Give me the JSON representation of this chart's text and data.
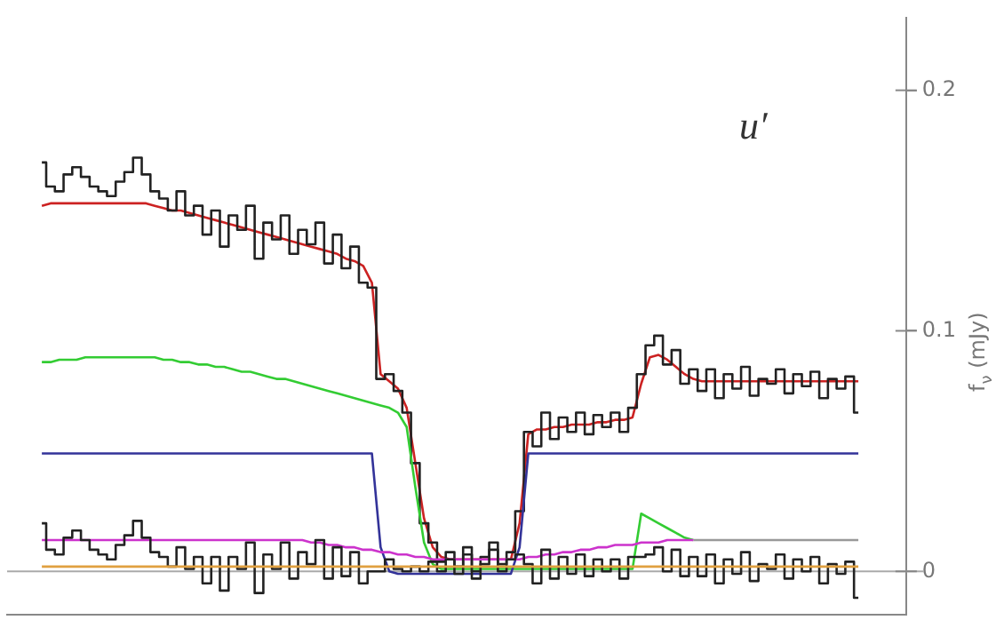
{
  "chart_data": {
    "type": "line",
    "ylabel": "f$_{ν}$ (mJy)",
    "annotations": [
      "u′"
    ],
    "categories": [
      null,
      null,
      null,
      null,
      null,
      null,
      null,
      null,
      null,
      null,
      null,
      null,
      null,
      null,
      null,
      null,
      null,
      null,
      null,
      null,
      null,
      null,
      null,
      null,
      null,
      null,
      null,
      null,
      null,
      null,
      null,
      null,
      null,
      null,
      null,
      null,
      null,
      null,
      null,
      null,
      null,
      null,
      null,
      null,
      null,
      null,
      null,
      null,
      null,
      null,
      null,
      null,
      null,
      null,
      null,
      null,
      null,
      null,
      null,
      null,
      null,
      null,
      null,
      null,
      null,
      null,
      null,
      null,
      null,
      null,
      null,
      null,
      null,
      null,
      null,
      null,
      null,
      null,
      null,
      null,
      null,
      null,
      null,
      null,
      null,
      null,
      null,
      null,
      null,
      null,
      null,
      null,
      null,
      null,
      null
    ],
    "ylim": [
      -0.018,
      0.23
    ],
    "yticks": [
      0,
      0.1,
      0.2
    ],
    "tick_labels": "y",
    "legend": false,
    "marker": "none",
    "ref_lines": [
      {
        "axis": "y",
        "value": 0,
        "color": "#aaaaaa"
      }
    ],
    "series": [
      {
        "type": "line",
        "color": "#e0a040",
        "values": [
          0.002,
          0.002,
          0.002,
          0.002,
          0.002,
          0.002,
          0.002,
          0.002,
          0.002,
          0.002,
          0.002,
          0.002,
          0.002,
          0.002,
          0.002,
          0.002,
          0.002,
          0.002,
          0.002,
          0.002,
          0.002,
          0.002,
          0.002,
          0.002,
          0.002,
          0.002,
          0.002,
          0.002,
          0.002,
          0.002,
          0.002,
          0.002,
          0.002,
          0.002,
          0.002,
          0.002,
          0.002,
          0.002,
          0.002,
          0.002,
          0.002,
          0.002,
          0.002,
          0.002,
          0.002,
          0.002,
          0.002,
          0.002,
          0.002,
          0.002,
          0.002,
          0.002,
          0.002,
          0.002,
          0.002,
          0.002,
          0.002,
          0.002,
          0.002,
          0.002,
          0.002,
          0.002,
          0.002,
          0.002,
          0.002,
          0.002,
          0.002,
          0.002,
          0.002,
          0.002,
          0.002,
          0.002,
          0.002,
          0.002,
          0.002,
          0.002,
          0.002,
          0.002,
          0.002,
          0.002,
          0.002,
          0.002,
          0.002,
          0.002,
          0.002,
          0.002,
          0.002,
          0.002,
          0.002,
          0.002,
          0.002,
          0.002,
          0.002,
          0.002,
          0.002
        ]
      },
      {
        "type": "step",
        "color": "#222222",
        "values": [
          0.02,
          0.009,
          0.007,
          0.014,
          0.017,
          0.013,
          0.009,
          0.007,
          0.005,
          0.011,
          0.015,
          0.021,
          0.014,
          0.008,
          0.006,
          0.002,
          0.01,
          0.001,
          0.006,
          -0.005,
          0.006,
          -0.008,
          0.006,
          0.001,
          0.012,
          -0.009,
          0.007,
          0.001,
          0.012,
          -0.003,
          0.008,
          0.003,
          0.013,
          -0.003,
          0.01,
          -0.002,
          0.008,
          -0.005,
          0.0,
          0.0,
          0.005,
          0.001,
          0.0,
          0.002,
          0.0,
          0.004,
          0.0,
          0.005,
          -0.001,
          0.007,
          -0.003,
          0.003,
          0.009,
          0.0,
          0.005,
          0.007,
          0.003,
          -0.005,
          0.009,
          -0.003,
          0.006,
          -0.001,
          0.007,
          -0.002,
          0.005,
          0.0,
          0.005,
          -0.003,
          0.006,
          0.006,
          0.007,
          0.01,
          0.0,
          0.009,
          -0.002,
          0.006,
          -0.002,
          0.007,
          -0.005,
          0.005,
          -0.001,
          0.008,
          -0.004,
          0.003,
          0.001,
          0.007,
          -0.003,
          0.005,
          0.0,
          0.006,
          -0.005,
          0.003,
          -0.001,
          0.004,
          -0.011
        ]
      },
      {
        "type": "line",
        "color": "#cc33cc",
        "values": [
          0.013,
          0.013,
          0.013,
          0.013,
          0.013,
          0.013,
          0.013,
          0.013,
          0.013,
          0.013,
          0.013,
          0.013,
          0.013,
          0.013,
          0.013,
          0.013,
          0.013,
          0.013,
          0.013,
          0.013,
          0.013,
          0.013,
          0.013,
          0.013,
          0.013,
          0.013,
          0.013,
          0.013,
          0.013,
          0.013,
          0.013,
          0.012,
          0.012,
          0.011,
          0.011,
          0.01,
          0.01,
          0.009,
          0.009,
          0.008,
          0.008,
          0.007,
          0.007,
          0.006,
          0.006,
          0.005,
          0.005,
          0.005,
          0.005,
          0.005,
          0.005,
          0.005,
          0.005,
          0.005,
          0.005,
          0.005,
          0.006,
          0.006,
          0.007,
          0.007,
          0.008,
          0.008,
          0.009,
          0.009,
          0.01,
          0.01,
          0.011,
          0.011,
          0.011,
          0.012,
          0.012,
          0.012,
          0.013,
          0.013,
          0.013,
          0.013,
          null,
          null,
          null,
          null,
          null,
          null,
          null,
          null,
          null,
          null,
          null,
          null,
          null,
          null,
          null,
          null,
          null,
          null,
          null
        ]
      },
      {
        "type": "line",
        "color": "#999999",
        "values": [
          null,
          null,
          null,
          null,
          null,
          null,
          null,
          null,
          null,
          null,
          null,
          null,
          null,
          null,
          null,
          null,
          null,
          null,
          null,
          null,
          null,
          null,
          null,
          null,
          null,
          null,
          null,
          null,
          null,
          null,
          null,
          null,
          null,
          null,
          null,
          null,
          null,
          null,
          null,
          null,
          null,
          null,
          null,
          null,
          null,
          null,
          null,
          null,
          null,
          null,
          null,
          null,
          null,
          null,
          null,
          null,
          null,
          null,
          null,
          null,
          null,
          null,
          null,
          null,
          null,
          null,
          null,
          null,
          null,
          null,
          null,
          null,
          null,
          null,
          null,
          0.013,
          0.013,
          0.013,
          0.013,
          0.013,
          0.013,
          0.013,
          0.013,
          0.013,
          0.013,
          0.013,
          0.013,
          0.013,
          0.013,
          0.013,
          0.013,
          0.013,
          0.013,
          0.013,
          0.013
        ]
      },
      {
        "type": "line",
        "color": "#333399",
        "values": [
          0.049,
          0.049,
          0.049,
          0.049,
          0.049,
          0.049,
          0.049,
          0.049,
          0.049,
          0.049,
          0.049,
          0.049,
          0.049,
          0.049,
          0.049,
          0.049,
          0.049,
          0.049,
          0.049,
          0.049,
          0.049,
          0.049,
          0.049,
          0.049,
          0.049,
          0.049,
          0.049,
          0.049,
          0.049,
          0.049,
          0.049,
          0.049,
          0.049,
          0.049,
          0.049,
          0.049,
          0.049,
          0.049,
          0.049,
          0.01,
          0.0,
          -0.001,
          -0.001,
          -0.001,
          -0.001,
          -0.001,
          -0.001,
          -0.001,
          -0.001,
          -0.001,
          -0.001,
          -0.001,
          -0.001,
          -0.001,
          -0.001,
          0.01,
          0.049,
          0.049,
          0.049,
          0.049,
          0.049,
          0.049,
          0.049,
          0.049,
          0.049,
          0.049,
          0.049,
          0.049,
          0.049,
          0.049,
          0.049,
          0.049,
          0.049,
          0.049,
          0.049,
          0.049,
          0.049,
          0.049,
          0.049,
          0.049,
          0.049,
          0.049,
          0.049,
          0.049,
          0.049,
          0.049,
          0.049,
          0.049,
          0.049,
          0.049,
          0.049,
          0.049,
          0.049,
          0.049,
          0.049
        ]
      },
      {
        "type": "line",
        "color": "#33cc33",
        "values": [
          0.087,
          0.087,
          0.088,
          0.088,
          0.088,
          0.089,
          0.089,
          0.089,
          0.089,
          0.089,
          0.089,
          0.089,
          0.089,
          0.089,
          0.088,
          0.088,
          0.087,
          0.087,
          0.086,
          0.086,
          0.085,
          0.085,
          0.084,
          0.083,
          0.083,
          0.082,
          0.081,
          0.08,
          0.08,
          0.079,
          0.078,
          0.077,
          0.076,
          0.075,
          0.074,
          0.073,
          0.072,
          0.071,
          0.07,
          0.069,
          0.068,
          0.066,
          0.06,
          0.035,
          0.012,
          0.003,
          0.001,
          0.001,
          0.001,
          0.001,
          0.001,
          0.001,
          0.001,
          0.001,
          0.001,
          0.001,
          0.001,
          0.001,
          0.001,
          0.001,
          0.001,
          0.001,
          0.001,
          0.001,
          0.001,
          0.001,
          0.001,
          0.001,
          0.001,
          0.024,
          0.022,
          0.02,
          0.018,
          0.016,
          0.014,
          0.013,
          null,
          null,
          null,
          null,
          null,
          null,
          null,
          null,
          null,
          null,
          null,
          null,
          null,
          null,
          null,
          null,
          null,
          null,
          null
        ]
      },
      {
        "type": "step",
        "color": "#222222",
        "values": [
          0.17,
          0.16,
          0.158,
          0.165,
          0.168,
          0.164,
          0.16,
          0.158,
          0.156,
          0.162,
          0.166,
          0.172,
          0.165,
          0.158,
          0.155,
          0.15,
          0.158,
          0.148,
          0.152,
          0.14,
          0.15,
          0.135,
          0.148,
          0.142,
          0.152,
          0.13,
          0.145,
          0.138,
          0.148,
          0.132,
          0.142,
          0.136,
          0.145,
          0.128,
          0.14,
          0.126,
          0.135,
          0.12,
          0.118,
          0.08,
          0.082,
          0.075,
          0.066,
          0.045,
          0.02,
          0.012,
          0.004,
          0.008,
          0.002,
          0.01,
          0.0,
          0.006,
          0.012,
          0.003,
          0.008,
          0.025,
          0.058,
          0.052,
          0.066,
          0.055,
          0.064,
          0.058,
          0.066,
          0.057,
          0.065,
          0.06,
          0.066,
          0.058,
          0.068,
          0.082,
          0.094,
          0.098,
          0.086,
          0.092,
          0.078,
          0.084,
          0.075,
          0.084,
          0.072,
          0.082,
          0.076,
          0.085,
          0.073,
          0.08,
          0.078,
          0.084,
          0.074,
          0.082,
          0.077,
          0.083,
          0.072,
          0.08,
          0.076,
          0.081,
          0.066
        ]
      },
      {
        "type": "line",
        "color": "#cc2222",
        "values": [
          0.152,
          0.153,
          0.153,
          0.153,
          0.153,
          0.153,
          0.153,
          0.153,
          0.153,
          0.153,
          0.153,
          0.153,
          0.153,
          0.152,
          0.151,
          0.15,
          0.15,
          0.149,
          0.148,
          0.147,
          0.146,
          0.145,
          0.144,
          0.143,
          0.142,
          0.141,
          0.14,
          0.139,
          0.138,
          0.137,
          0.136,
          0.135,
          0.134,
          0.133,
          0.132,
          0.13,
          0.129,
          0.127,
          0.12,
          0.082,
          0.079,
          0.076,
          0.068,
          0.045,
          0.022,
          0.01,
          0.006,
          0.005,
          0.005,
          0.005,
          0.005,
          0.005,
          0.005,
          0.005,
          0.005,
          0.02,
          0.057,
          0.059,
          0.059,
          0.06,
          0.06,
          0.061,
          0.061,
          0.061,
          0.062,
          0.062,
          0.063,
          0.063,
          0.064,
          0.078,
          0.089,
          0.09,
          0.088,
          0.085,
          0.082,
          0.08,
          0.079,
          0.079,
          0.079,
          0.079,
          0.079,
          0.079,
          0.079,
          0.079,
          0.079,
          0.079,
          0.079,
          0.079,
          0.079,
          0.079,
          0.079,
          0.079,
          0.079,
          0.079,
          0.079
        ]
      }
    ]
  }
}
